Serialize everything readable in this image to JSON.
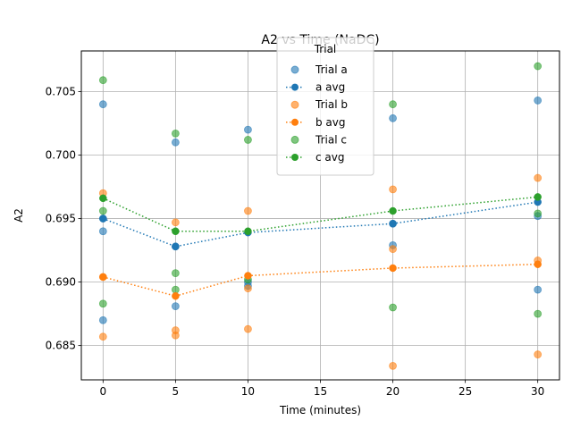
{
  "chart_data": {
    "type": "scatter",
    "title": "A2 vs Time (NaDC)",
    "xlabel": "Time (minutes)",
    "ylabel": "A2",
    "xlim": [
      -1.5,
      31.5
    ],
    "ylim": [
      0.6823,
      0.7082
    ],
    "xticks": [
      0,
      5,
      10,
      15,
      20,
      25,
      30
    ],
    "yticks": [
      0.685,
      0.69,
      0.695,
      0.7,
      0.705
    ],
    "ytick_labels": [
      "0.685",
      "0.690",
      "0.695",
      "0.700",
      "0.705"
    ],
    "grid": true,
    "legend": {
      "title": "Trial",
      "placement": "upper center",
      "entries": [
        {
          "label": "Trial a",
          "kind": "marker",
          "color": "#1f77b4"
        },
        {
          "label": "a avg",
          "kind": "line",
          "color": "#1f77b4"
        },
        {
          "label": "Trial b",
          "kind": "marker",
          "color": "#ff7f0e"
        },
        {
          "label": "b avg",
          "kind": "line",
          "color": "#ff7f0e"
        },
        {
          "label": "Trial c",
          "kind": "marker",
          "color": "#2ca02c"
        },
        {
          "label": "c avg",
          "kind": "line",
          "color": "#2ca02c"
        }
      ]
    },
    "series": [
      {
        "name": "Trial a",
        "kind": "scatter",
        "color": "#1f77b4",
        "points": [
          [
            0,
            0.704
          ],
          [
            0,
            0.695
          ],
          [
            0,
            0.694
          ],
          [
            0,
            0.687
          ],
          [
            5,
            0.701
          ],
          [
            5,
            0.6928
          ],
          [
            5,
            0.6881
          ],
          [
            10,
            0.702
          ],
          [
            10,
            0.69
          ],
          [
            10,
            0.6897
          ],
          [
            20,
            0.7029
          ],
          [
            20,
            0.6946
          ],
          [
            20,
            0.6929
          ],
          [
            30,
            0.7043
          ],
          [
            30,
            0.6952
          ],
          [
            30,
            0.6894
          ]
        ]
      },
      {
        "name": "a avg",
        "kind": "line",
        "color": "#1f77b4",
        "x": [
          0,
          5,
          10,
          20,
          30
        ],
        "y": [
          0.695,
          0.6928,
          0.6939,
          0.6946,
          0.6963
        ]
      },
      {
        "name": "Trial b",
        "kind": "scatter",
        "color": "#ff7f0e",
        "points": [
          [
            0,
            0.697
          ],
          [
            0,
            0.6904
          ],
          [
            0,
            0.6857
          ],
          [
            5,
            0.6947
          ],
          [
            5,
            0.6862
          ],
          [
            5,
            0.6858
          ],
          [
            10,
            0.6956
          ],
          [
            10,
            0.6895
          ],
          [
            10,
            0.6863
          ],
          [
            20,
            0.6973
          ],
          [
            20,
            0.6926
          ],
          [
            20,
            0.6834
          ],
          [
            30,
            0.6982
          ],
          [
            30,
            0.6917
          ],
          [
            30,
            0.6843
          ]
        ]
      },
      {
        "name": "b avg",
        "kind": "line",
        "color": "#ff7f0e",
        "x": [
          0,
          5,
          10,
          20,
          30
        ],
        "y": [
          0.6904,
          0.6889,
          0.6905,
          0.6911,
          0.6914
        ]
      },
      {
        "name": "Trial c",
        "kind": "scatter",
        "color": "#2ca02c",
        "points": [
          [
            0,
            0.7059
          ],
          [
            0,
            0.6956
          ],
          [
            0,
            0.6883
          ],
          [
            5,
            0.7017
          ],
          [
            5,
            0.6907
          ],
          [
            5,
            0.6894
          ],
          [
            10,
            0.7012
          ],
          [
            10,
            0.6902
          ],
          [
            20,
            0.704
          ],
          [
            20,
            0.688
          ],
          [
            30,
            0.707
          ],
          [
            30,
            0.6954
          ],
          [
            30,
            0.6875
          ]
        ]
      },
      {
        "name": "c avg",
        "kind": "line",
        "color": "#2ca02c",
        "x": [
          0,
          5,
          10,
          20,
          30
        ],
        "y": [
          0.6966,
          0.694,
          0.694,
          0.6956,
          0.6967
        ]
      }
    ]
  }
}
